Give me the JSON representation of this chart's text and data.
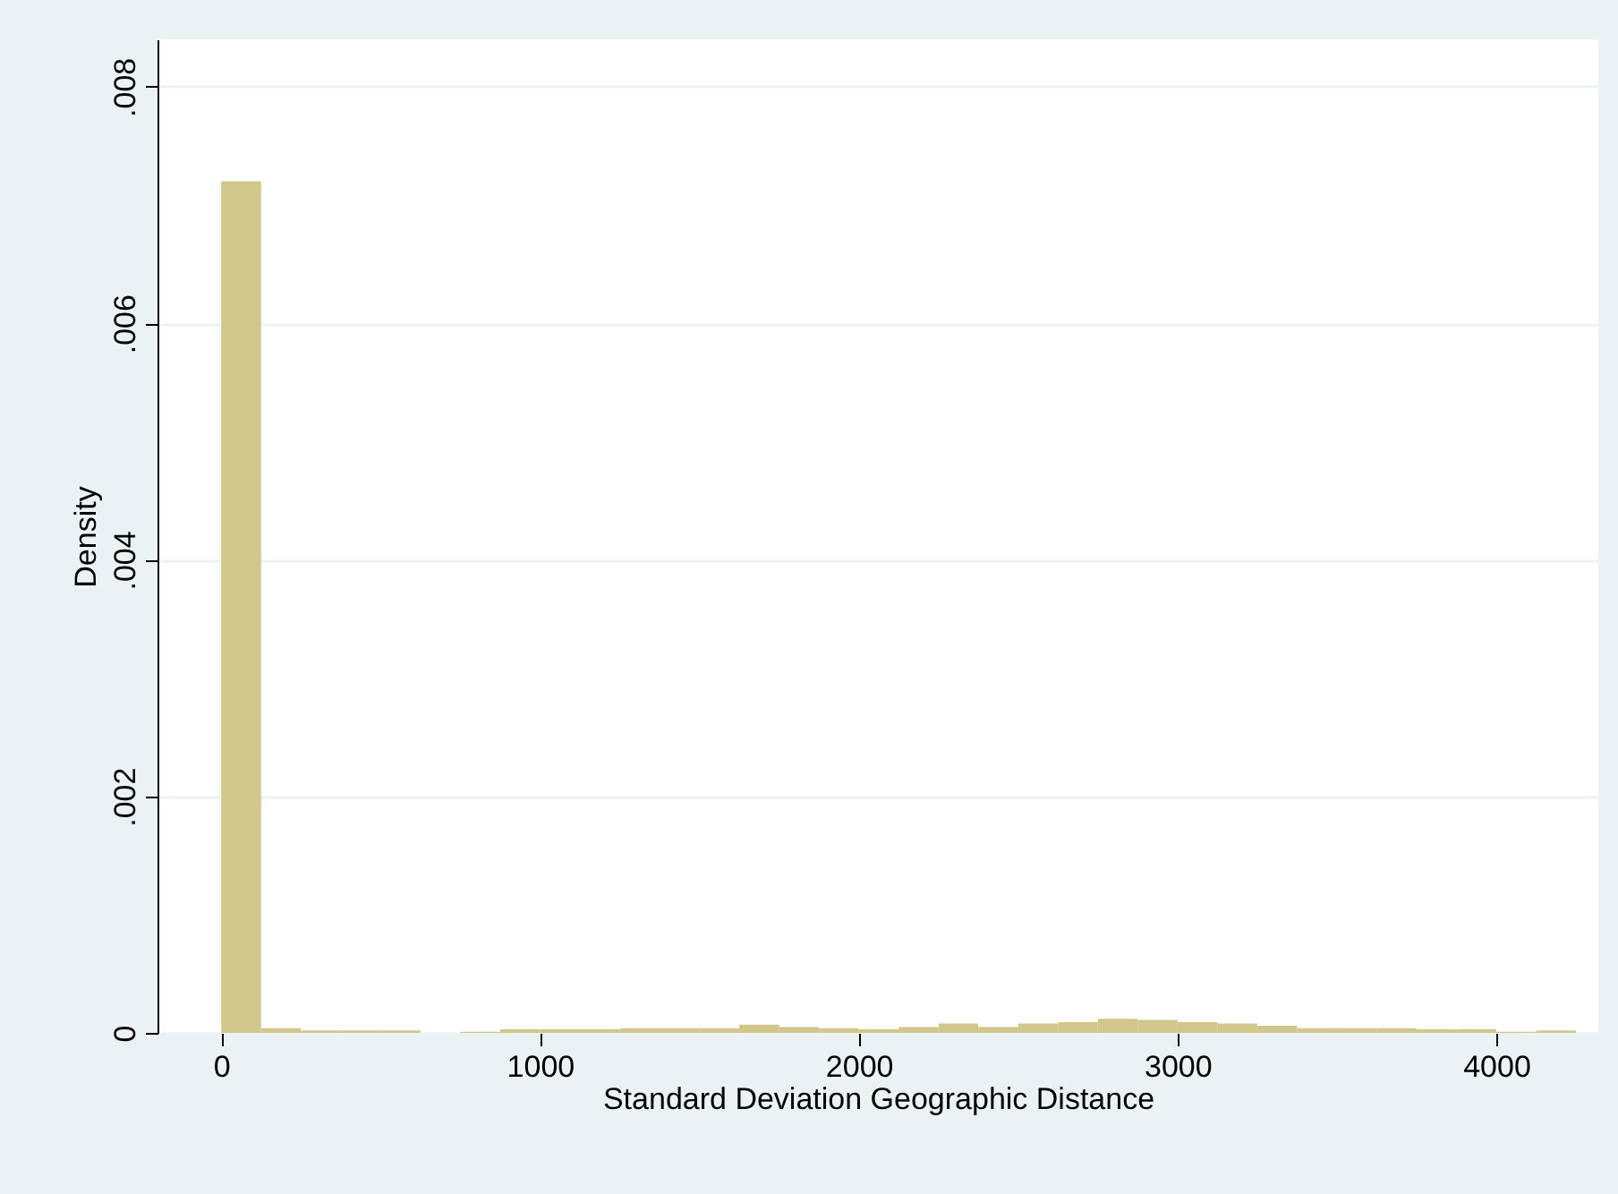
{
  "chart_data": {
    "type": "histogram",
    "xlabel": "Standard Deviation Geographic Distance",
    "ylabel": "Density",
    "color": "#d1c78a",
    "bins": [
      0,
      125,
      250,
      375,
      500,
      625,
      750,
      875,
      1000,
      1125,
      1250,
      1375,
      1500,
      1625,
      1750,
      1875,
      2000,
      2125,
      2250,
      2375,
      2500,
      2625,
      2750,
      2875,
      3000,
      3125,
      3250,
      3375,
      3500,
      3625,
      3750,
      3875,
      4000,
      4125,
      4250
    ],
    "values": [
      0.0072,
      4e-05,
      2e-05,
      2e-05,
      2e-05,
      0,
      1e-05,
      3e-05,
      3e-05,
      3e-05,
      4e-05,
      4e-05,
      4e-05,
      7e-05,
      5e-05,
      4e-05,
      3e-05,
      5e-05,
      8e-05,
      5e-05,
      8e-05,
      9e-05,
      0.00012,
      0.00011,
      9e-05,
      8e-05,
      6e-05,
      4e-05,
      4e-05,
      4e-05,
      3e-05,
      3e-05,
      1e-05,
      2e-05
    ],
    "xlim": [
      -200,
      4320
    ],
    "ylim": [
      0,
      0.0084
    ],
    "xticks": [
      0,
      1000,
      2000,
      3000,
      4000
    ],
    "yticks": [
      {
        "value": 0,
        "label": "0"
      },
      {
        "value": 0.002,
        "label": ".002"
      },
      {
        "value": 0.004,
        "label": ".004"
      },
      {
        "value": 0.006,
        "label": ".006"
      },
      {
        "value": 0.008,
        "label": ".008"
      }
    ],
    "grid": "y"
  }
}
